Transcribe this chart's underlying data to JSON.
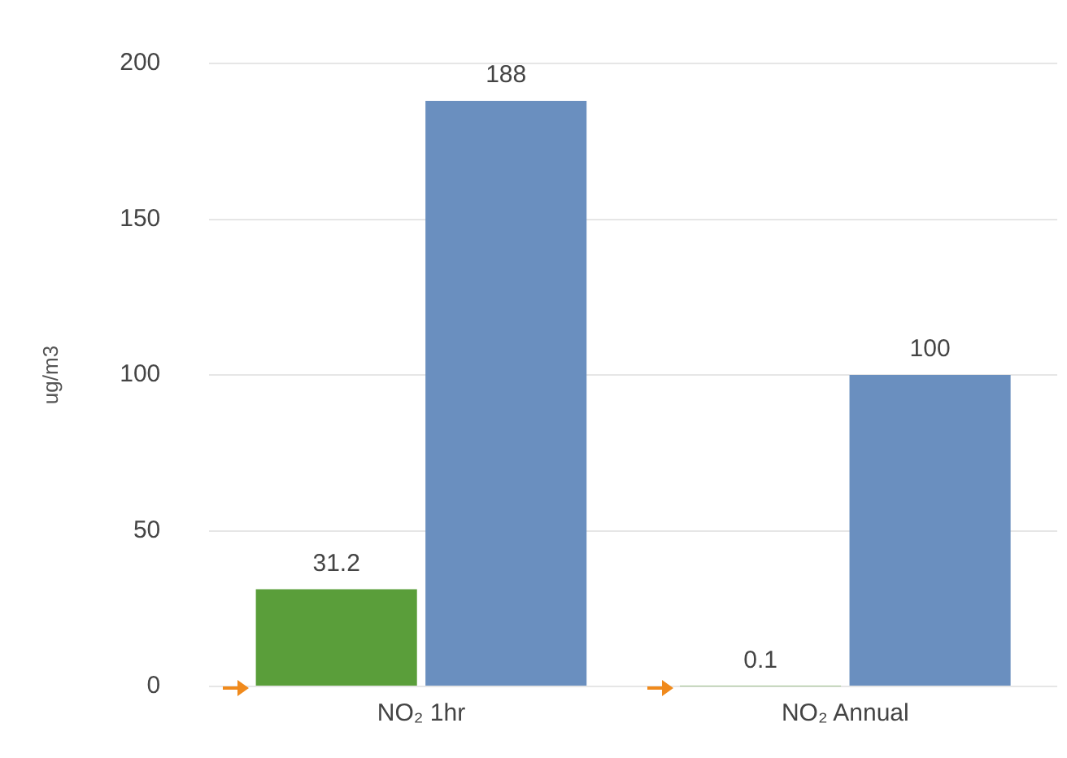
{
  "chart_data": {
    "type": "bar",
    "ylabel": "ug/m3",
    "categories": [
      "NO₂ 1hr",
      "NO₂ Annual"
    ],
    "series": [
      {
        "color": "#5a9e3a",
        "values": [
          31.2,
          0.1
        ]
      },
      {
        "color": "#6a8fbf",
        "values": [
          188,
          100
        ]
      }
    ],
    "ylim": [
      0,
      200
    ],
    "yticks": [
      0,
      50,
      100,
      150,
      200
    ],
    "grid": "y",
    "legend": false,
    "data_labels": true
  }
}
